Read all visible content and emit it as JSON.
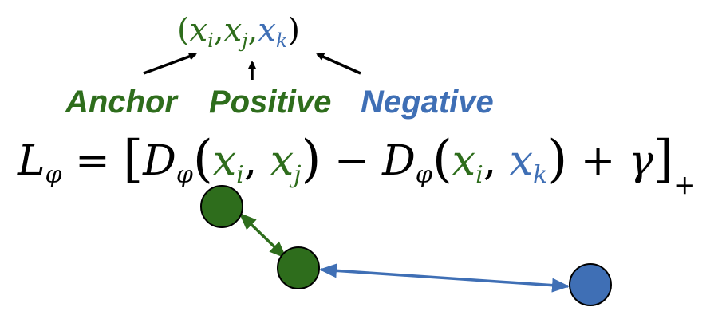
{
  "tuple": {
    "open": "(",
    "xi_base": "x",
    "xi_sub": "i",
    "comma1": ",",
    "xj_base": "x",
    "xj_sub": "j",
    "comma2": ",",
    "xk_base": "x",
    "xk_sub": "k",
    "close": ")"
  },
  "labels": {
    "anchor": "Anchor",
    "positive": "Positive",
    "negative": "Negative"
  },
  "formula": {
    "L": "L",
    "L_sub": "φ",
    "eq": " = ",
    "lbracket": "[",
    "D1": "D",
    "D1_sub": "φ",
    "p1_open": "(",
    "xi1": "x",
    "xi1_sub": "i",
    "c1": ", ",
    "xj": "x",
    "xj_sub": "j",
    "p1_close": ")",
    "minus": "  − ",
    "D2": "D",
    "D2_sub": "φ",
    "p2_open": "(",
    "xi2": "x",
    "xi2_sub": "i",
    "c2": ", ",
    "xk": "x",
    "xk_sub": "k",
    "p2_close": ")",
    "plus": " + ",
    "gamma": "γ",
    "rbracket": "]",
    "subscript_plus": "+"
  },
  "colors": {
    "anchor": "#2e6d1c",
    "positive": "#2e6d1c",
    "negative": "#3f6fb5",
    "text": "#000000"
  }
}
